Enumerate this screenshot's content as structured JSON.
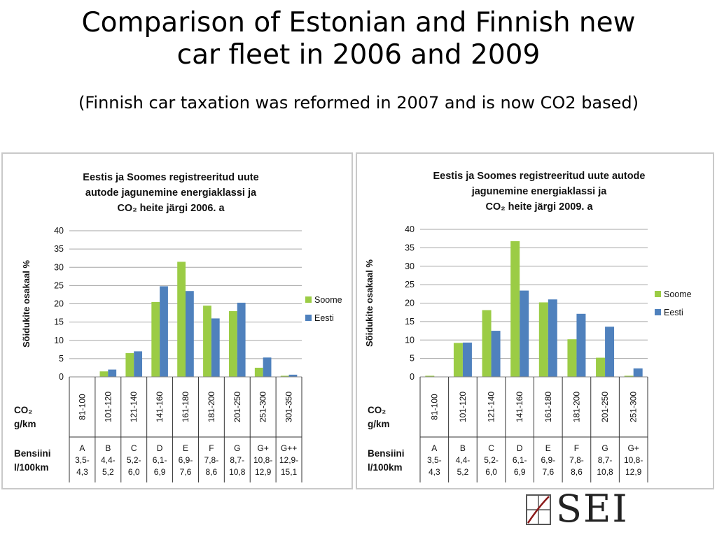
{
  "slide": {
    "title_line1": "Comparison of Estonian and Finnish new",
    "title_line2": "car fleet in 2006 and 2009",
    "subtitle": "(Finnish car taxation was  reformed in 2007 and is now CO2 based)"
  },
  "logo": {
    "text": "SEI",
    "icon": "sei-emblem-icon",
    "accent_color": "#8b1a1a"
  },
  "colors": {
    "soome": "#9bcc45",
    "eesti": "#4f81bd"
  },
  "chart_data": [
    {
      "type": "bar",
      "title_lines": [
        "Eestis ja Soomes registreeritud uute",
        "autode jagunemine energiaklassi ja",
        "CO₂ heite järgi 2006. a"
      ],
      "ylabel": "Sõidukite osakaal %",
      "ylim": [
        0,
        40
      ],
      "yticks": [
        "0",
        "5",
        "10",
        "15",
        "20",
        "25",
        "30",
        "35",
        "40"
      ],
      "grid": true,
      "legend_position": "right",
      "categories": [
        "81-100",
        "101-120",
        "121-140",
        "141-160",
        "161-180",
        "181-200",
        "201-250",
        "251-300",
        "301-350"
      ],
      "classes": [
        "A",
        "B",
        "C",
        "D",
        "E",
        "F",
        "G",
        "G+",
        "G++"
      ],
      "consumption": [
        [
          "3,5-",
          "4,3"
        ],
        [
          "4,4-",
          "5,2"
        ],
        [
          "5,2-",
          "6,0"
        ],
        [
          "6,1-",
          "6,9"
        ],
        [
          "6,9-",
          "7,6"
        ],
        [
          "7,8-",
          "8,6"
        ],
        [
          "8,7-",
          "10,8"
        ],
        [
          "10,8-",
          "12,9"
        ],
        [
          "12,9-",
          "15,1"
        ]
      ],
      "row_label_co2": [
        "CO₂",
        "g/km"
      ],
      "row_label_fuel": [
        "Bensiini",
        "l/100km"
      ],
      "series": [
        {
          "name": "Soome",
          "color": "#9bcc45",
          "values": [
            0,
            1.5,
            6.5,
            20.5,
            31.5,
            19.5,
            18,
            2.5,
            0.3
          ]
        },
        {
          "name": "Eesti",
          "color": "#4f81bd",
          "values": [
            0,
            2,
            7,
            24.8,
            23.5,
            16,
            20.3,
            5.3,
            0.6
          ]
        }
      ]
    },
    {
      "type": "bar",
      "title_lines": [
        "Eestis ja Soomes registreeritud uute autode",
        "jagunemine energiaklassi ja",
        "CO₂ heite järgi 2009. a"
      ],
      "ylabel": "Sõidukite osakaal %",
      "ylim": [
        0,
        40
      ],
      "yticks": [
        "0",
        "5",
        "10",
        "15",
        "20",
        "25",
        "30",
        "35",
        "40"
      ],
      "grid": true,
      "legend_position": "right",
      "categories": [
        "81-100",
        "101-120",
        "121-140",
        "141-160",
        "161-180",
        "181-200",
        "201-250",
        "251-300"
      ],
      "classes": [
        "A",
        "B",
        "C",
        "D",
        "E",
        "F",
        "G",
        "G+"
      ],
      "consumption": [
        [
          "3,5-",
          "4,3"
        ],
        [
          "4,4-",
          "5,2"
        ],
        [
          "5,2-",
          "6,0"
        ],
        [
          "6,1-",
          "6,9"
        ],
        [
          "6,9-",
          "7,6"
        ],
        [
          "7,8-",
          "8,6"
        ],
        [
          "8,7-",
          "10,8"
        ],
        [
          "10,8-",
          "12,9"
        ]
      ],
      "row_label_co2": [
        "CO₂",
        "g/km"
      ],
      "row_label_fuel": [
        "Bensiini",
        "l/100km"
      ],
      "series": [
        {
          "name": "Soome",
          "color": "#9bcc45",
          "values": [
            0.3,
            9.2,
            18.1,
            36.8,
            20.2,
            10.2,
            5.2,
            0.3
          ]
        },
        {
          "name": "Eesti",
          "color": "#4f81bd",
          "values": [
            0,
            9.3,
            12.5,
            23.4,
            21,
            17.1,
            13.6,
            2.3
          ]
        }
      ]
    }
  ]
}
